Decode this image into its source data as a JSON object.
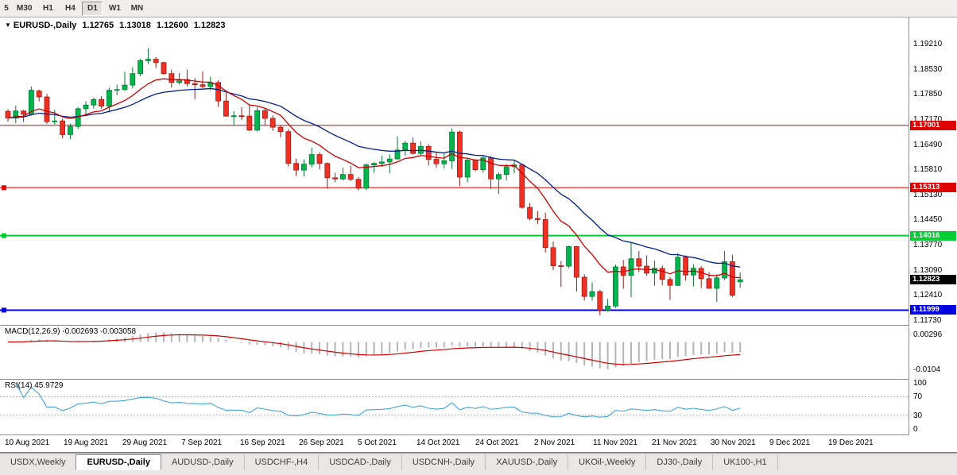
{
  "toolbar": {
    "timeframes": [
      {
        "label": "5",
        "active": false,
        "clipped": true
      },
      {
        "label": "M30",
        "active": false
      },
      {
        "label": "H1",
        "active": false
      },
      {
        "label": "H4",
        "active": false
      },
      {
        "label": "D1",
        "active": true
      },
      {
        "label": "W1",
        "active": false
      },
      {
        "label": "MN",
        "active": false
      }
    ]
  },
  "chart_header": {
    "dropdown_icon": "▼",
    "symbol": "EURUSD-,Daily",
    "open": "1.12765",
    "high": "1.13018",
    "low": "1.12600",
    "close": "1.12823"
  },
  "price_axis": {
    "labels": [
      "1.19210",
      "1.18530",
      "1.17850",
      "1.17170",
      "1.16490",
      "1.15810",
      "1.15130",
      "1.14450",
      "1.13770",
      "1.13090",
      "1.12410",
      "1.11730"
    ]
  },
  "hlines": [
    {
      "price": 1.17001,
      "label": "1.17001",
      "color": "#dd0000",
      "width": 1,
      "handles": false
    },
    {
      "price": 1.15313,
      "label": "1.15313",
      "color": "#dd0000",
      "width": 1,
      "handles": true
    },
    {
      "price": 1.14016,
      "label": "1.14016",
      "color": "#00cc33",
      "width": 2,
      "handles": true
    },
    {
      "price": 1.11999,
      "label": "1.11999",
      "color": "#0000e0",
      "width": 2,
      "handles": true
    }
  ],
  "current_price": {
    "label": "1.12823",
    "value": 1.12823,
    "bg": "#000000"
  },
  "macd_panel": {
    "title": "MACD(12,26,9) -0.002693 -0.003058",
    "axis_labels": [
      {
        "text": "0.00296",
        "value": 0.00296
      },
      {
        "text": "-0.0104",
        "value": -0.0104
      }
    ]
  },
  "rsi_panel": {
    "title": "RSI(14) 45.9729",
    "axis_labels": [
      {
        "text": "100",
        "value": 100
      },
      {
        "text": "70",
        "value": 70
      },
      {
        "text": "30",
        "value": 30
      },
      {
        "text": "0",
        "value": 0
      }
    ]
  },
  "date_axis": {
    "labels": [
      "10 Aug 2021",
      "19 Aug 2021",
      "29 Aug 2021",
      "7 Sep 2021",
      "16 Sep 2021",
      "26 Sep 2021",
      "5 Oct 2021",
      "14 Oct 2021",
      "24 Oct 2021",
      "2 Nov 2021",
      "11 Nov 2021",
      "21 Nov 2021",
      "30 Nov 2021",
      "9 Dec 2021",
      "19 Dec 2021"
    ]
  },
  "tabs": [
    {
      "label": "USDX,Weekly",
      "active": false
    },
    {
      "label": "EURUSD-,Daily",
      "active": true
    },
    {
      "label": "AUDUSD-,Daily",
      "active": false
    },
    {
      "label": "USDCHF-,H4",
      "active": false
    },
    {
      "label": "USDCAD-,Daily",
      "active": false
    },
    {
      "label": "USDCNH-,Daily",
      "active": false
    },
    {
      "label": "XAUUSD-,Daily",
      "active": false
    },
    {
      "label": "UKOil-,Weekly",
      "active": false
    },
    {
      "label": "DJ30-,Daily",
      "active": false
    },
    {
      "label": "UK100-,H1",
      "active": false
    }
  ],
  "chart_data": {
    "type": "candlestick",
    "title": "EURUSD-,Daily",
    "price_ylim": [
      1.116,
      1.1992
    ],
    "up_color": "#00b44e",
    "up_stroke": "#017a32",
    "down_color": "#ee3124",
    "down_stroke": "#9e1b14",
    "ma_fast": {
      "period": 10,
      "color": "#cc0000"
    },
    "ma_slow": {
      "period": 22,
      "color": "#001f8f"
    },
    "macd": {
      "params": [
        12,
        26,
        9
      ],
      "main": -0.002693,
      "signal": -0.003058,
      "ylim": [
        -0.014,
        0.0062
      ],
      "hist_color": "#b5b5b5",
      "signal_color": "#d10000"
    },
    "rsi": {
      "period": 14,
      "value": 45.9729,
      "color": "#42a5dc",
      "levels": [
        70,
        30
      ],
      "ylim": [
        0,
        100
      ]
    },
    "candles": [
      [
        1.1738,
        1.1744,
        1.171,
        1.172
      ],
      [
        1.172,
        1.1753,
        1.1706,
        1.1739
      ],
      [
        1.1739,
        1.1742,
        1.1709,
        1.173
      ],
      [
        1.173,
        1.1805,
        1.1727,
        1.1795
      ],
      [
        1.1793,
        1.1797,
        1.1765,
        1.1777
      ],
      [
        1.1777,
        1.1785,
        1.1704,
        1.171
      ],
      [
        1.171,
        1.1742,
        1.1702,
        1.1712
      ],
      [
        1.1712,
        1.1718,
        1.1665,
        1.1675
      ],
      [
        1.1675,
        1.1705,
        1.1663,
        1.1697
      ],
      [
        1.1697,
        1.175,
        1.169,
        1.1745
      ],
      [
        1.1745,
        1.1765,
        1.1727,
        1.1755
      ],
      [
        1.1755,
        1.1775,
        1.1745,
        1.177
      ],
      [
        1.177,
        1.1779,
        1.1745,
        1.1752
      ],
      [
        1.1752,
        1.1802,
        1.1735,
        1.1795
      ],
      [
        1.1795,
        1.181,
        1.1781,
        1.1797
      ],
      [
        1.1797,
        1.1845,
        1.1793,
        1.1809
      ],
      [
        1.1809,
        1.1857,
        1.18,
        1.184
      ],
      [
        1.184,
        1.188,
        1.1833,
        1.1875
      ],
      [
        1.1875,
        1.1909,
        1.1866,
        1.1879
      ],
      [
        1.1879,
        1.1885,
        1.1855,
        1.187
      ],
      [
        1.187,
        1.1872,
        1.1837,
        1.184
      ],
      [
        1.184,
        1.1851,
        1.1802,
        1.1816
      ],
      [
        1.1816,
        1.1842,
        1.181,
        1.1824
      ],
      [
        1.1824,
        1.1851,
        1.1805,
        1.1813
      ],
      [
        1.1813,
        1.1828,
        1.177,
        1.181
      ],
      [
        1.181,
        1.1846,
        1.18,
        1.1805
      ],
      [
        1.1805,
        1.1832,
        1.1795,
        1.1816
      ],
      [
        1.1816,
        1.1822,
        1.175,
        1.1766
      ],
      [
        1.1766,
        1.1788,
        1.1724,
        1.1725
      ],
      [
        1.1725,
        1.1738,
        1.17,
        1.1726
      ],
      [
        1.1726,
        1.1749,
        1.1715,
        1.1725
      ],
      [
        1.1725,
        1.1756,
        1.1684,
        1.1687
      ],
      [
        1.1687,
        1.175,
        1.1683,
        1.174
      ],
      [
        1.174,
        1.1747,
        1.1701,
        1.1719
      ],
      [
        1.1719,
        1.1727,
        1.1685,
        1.1695
      ],
      [
        1.1695,
        1.17,
        1.1668,
        1.1683
      ],
      [
        1.1683,
        1.169,
        1.1589,
        1.1597
      ],
      [
        1.1597,
        1.161,
        1.1563,
        1.1579
      ],
      [
        1.1579,
        1.1608,
        1.1562,
        1.1595
      ],
      [
        1.1595,
        1.164,
        1.1586,
        1.1621
      ],
      [
        1.1621,
        1.1627,
        1.1581,
        1.1597
      ],
      [
        1.1597,
        1.16,
        1.1529,
        1.1558
      ],
      [
        1.1558,
        1.1572,
        1.1546,
        1.1555
      ],
      [
        1.1555,
        1.1586,
        1.1551,
        1.1567
      ],
      [
        1.1567,
        1.1591,
        1.1549,
        1.1554
      ],
      [
        1.1554,
        1.156,
        1.1524,
        1.153
      ],
      [
        1.153,
        1.1597,
        1.1525,
        1.1593
      ],
      [
        1.1593,
        1.16,
        1.1572,
        1.1597
      ],
      [
        1.1597,
        1.1618,
        1.1588,
        1.1601
      ],
      [
        1.1601,
        1.1622,
        1.1571,
        1.1609
      ],
      [
        1.1609,
        1.167,
        1.1609,
        1.1633
      ],
      [
        1.1633,
        1.1658,
        1.1617,
        1.1652
      ],
      [
        1.1652,
        1.1667,
        1.1621,
        1.1624
      ],
      [
        1.1624,
        1.1657,
        1.162,
        1.1643
      ],
      [
        1.1643,
        1.1649,
        1.1591,
        1.1608
      ],
      [
        1.1608,
        1.1627,
        1.1585,
        1.1596
      ],
      [
        1.1596,
        1.1626,
        1.1583,
        1.1604
      ],
      [
        1.1604,
        1.1692,
        1.1582,
        1.1682
      ],
      [
        1.1682,
        1.1686,
        1.1535,
        1.156
      ],
      [
        1.156,
        1.161,
        1.1546,
        1.1606
      ],
      [
        1.1606,
        1.1609,
        1.1575,
        1.158
      ],
      [
        1.158,
        1.1616,
        1.1572,
        1.1612
      ],
      [
        1.1612,
        1.1617,
        1.1528,
        1.1555
      ],
      [
        1.1555,
        1.1573,
        1.1514,
        1.1567
      ],
      [
        1.1567,
        1.1595,
        1.1551,
        1.1588
      ],
      [
        1.1588,
        1.1608,
        1.157,
        1.1593
      ],
      [
        1.1593,
        1.1595,
        1.1475,
        1.1478
      ],
      [
        1.1478,
        1.149,
        1.1443,
        1.1448
      ],
      [
        1.1448,
        1.1468,
        1.1433,
        1.1445
      ],
      [
        1.1445,
        1.1464,
        1.1356,
        1.1369
      ],
      [
        1.1369,
        1.1386,
        1.1308,
        1.132
      ],
      [
        1.132,
        1.1333,
        1.1263,
        1.1319
      ],
      [
        1.1319,
        1.1374,
        1.1313,
        1.1372
      ],
      [
        1.1372,
        1.1374,
        1.125,
        1.1289
      ],
      [
        1.1289,
        1.1297,
        1.1226,
        1.1237
      ],
      [
        1.1237,
        1.1275,
        1.1226,
        1.125
      ],
      [
        1.125,
        1.1255,
        1.1186,
        1.12
      ],
      [
        1.12,
        1.123,
        1.1196,
        1.1211
      ],
      [
        1.1211,
        1.1323,
        1.1206,
        1.1317
      ],
      [
        1.1317,
        1.1336,
        1.1258,
        1.1294
      ],
      [
        1.1294,
        1.1383,
        1.1235,
        1.1339
      ],
      [
        1.1339,
        1.136,
        1.1303,
        1.1319
      ],
      [
        1.1319,
        1.1348,
        1.1293,
        1.13
      ],
      [
        1.13,
        1.1334,
        1.1266,
        1.1313
      ],
      [
        1.1313,
        1.132,
        1.1267,
        1.1283
      ],
      [
        1.1283,
        1.129,
        1.1228,
        1.1267
      ],
      [
        1.1267,
        1.1354,
        1.1265,
        1.1343
      ],
      [
        1.1343,
        1.1348,
        1.128,
        1.1295
      ],
      [
        1.1295,
        1.1324,
        1.1264,
        1.1313
      ],
      [
        1.1313,
        1.1319,
        1.126,
        1.1285
      ],
      [
        1.1285,
        1.1303,
        1.1258,
        1.1259
      ],
      [
        1.1259,
        1.1297,
        1.1222,
        1.1287
      ],
      [
        1.1287,
        1.136,
        1.1281,
        1.1331
      ],
      [
        1.1331,
        1.135,
        1.1236,
        1.124
      ],
      [
        1.12765,
        1.13018,
        1.126,
        1.12823
      ]
    ]
  }
}
